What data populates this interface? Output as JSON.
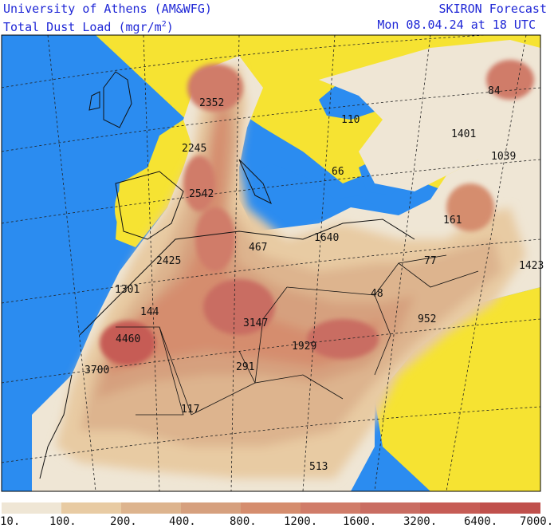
{
  "header": {
    "institution": "University of Athens (AM&WFG)",
    "field_prefix": "Total Dust Load (mgr/m",
    "field_sup": "2",
    "field_suffix": ")",
    "model": "SKIRON Forecast",
    "valid_time": "Mon 08.04.24 at 18 UTC"
  },
  "labels": [
    "2352",
    "2245",
    "2542",
    "2425",
    "1301",
    "144",
    "4460",
    "3700",
    "467",
    "1640",
    "110",
    "66",
    "84",
    "1401",
    "1039",
    "161",
    "77",
    "48",
    "952",
    "3147",
    "1929",
    "291",
    "117",
    "1423",
    "513"
  ],
  "legend": {
    "colors": [
      "#efe6d5",
      "#e8cba3",
      "#ddb48e",
      "#d6a07e",
      "#d58d6e",
      "#d07c69",
      "#c96d62",
      "#c65c55",
      "#c0504c"
    ],
    "ticks": [
      "10.",
      "100.",
      "200.",
      "400.",
      "800.",
      "1200.",
      "1600.",
      "3200.",
      "6400.",
      "7000."
    ]
  },
  "colors": {
    "sea": "#2b8cf0",
    "nodust": "#f6e332",
    "text_blue": "#1f27d6"
  }
}
